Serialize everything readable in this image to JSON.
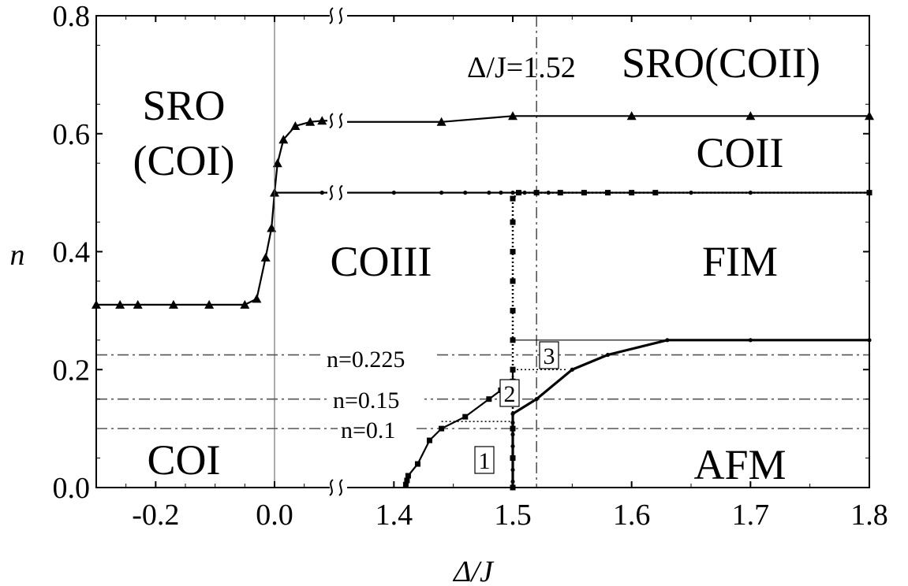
{
  "chart_data": {
    "type": "line",
    "xlabel": "Δ/J",
    "ylabel": "n",
    "ylim": [
      0,
      0.8
    ],
    "x_tick_labels": [
      "-0.2",
      "0.0",
      "1.4",
      "1.5",
      "1.6",
      "1.7",
      "1.8"
    ],
    "y_tick_labels": [
      "0.0",
      "0.2",
      "0.4",
      "0.6",
      "0.8"
    ],
    "x_axis_broken": true,
    "x_segments": [
      [
        -0.3,
        0.08
      ],
      [
        1.35,
        1.8
      ]
    ],
    "grid": false,
    "region_labels": [
      "SRO\n(COI)",
      "COI",
      "COIII",
      "COII",
      "FIM",
      "AFM"
    ],
    "top_annotation": "Δ/J=1.52 SRO(COII)",
    "vertical_reference": {
      "x": 1.52,
      "label": "Δ/J=1.52"
    },
    "horizontal_references": [
      {
        "y": 0.225,
        "label": "n=0.225"
      },
      {
        "y": 0.15,
        "label": "n=0.15"
      },
      {
        "y": 0.1,
        "label": "n=0.1"
      }
    ],
    "box_labels": [
      "1",
      "2",
      "3"
    ],
    "series": [
      {
        "marker": "triangle",
        "points": [
          [
            -0.3,
            0.31
          ],
          [
            -0.26,
            0.31
          ],
          [
            -0.23,
            0.31
          ],
          [
            -0.17,
            0.31
          ],
          [
            -0.11,
            0.31
          ],
          [
            -0.05,
            0.31
          ],
          [
            -0.03,
            0.32
          ],
          [
            -0.015,
            0.39
          ],
          [
            -0.005,
            0.44
          ],
          [
            0.0,
            0.5
          ],
          [
            0.005,
            0.55
          ],
          [
            0.015,
            0.59
          ],
          [
            0.035,
            0.613
          ],
          [
            0.06,
            0.62
          ],
          [
            0.08,
            0.622
          ],
          [
            1.44,
            0.62
          ],
          [
            1.5,
            0.63
          ],
          [
            1.6,
            0.63
          ],
          [
            1.7,
            0.63
          ],
          [
            1.8,
            0.63
          ]
        ]
      },
      {
        "marker": "dot",
        "points": [
          [
            0.0,
            0.5
          ],
          [
            0.08,
            0.5
          ],
          [
            1.35,
            0.5
          ],
          [
            1.4,
            0.5
          ],
          [
            1.44,
            0.5
          ],
          [
            1.46,
            0.5
          ],
          [
            1.48,
            0.5
          ],
          [
            1.49,
            0.5
          ],
          [
            1.5,
            0.5
          ],
          [
            1.51,
            0.5
          ],
          [
            1.53,
            0.5
          ],
          [
            1.56,
            0.5
          ],
          [
            1.6,
            0.5
          ],
          [
            1.65,
            0.5
          ],
          [
            1.7,
            0.5
          ],
          [
            1.8,
            0.5
          ]
        ]
      },
      {
        "marker": "square",
        "dash": "dotted",
        "points": [
          [
            1.5,
            0.0
          ],
          [
            1.5,
            0.05
          ],
          [
            1.5,
            0.1
          ],
          [
            1.5,
            0.15
          ],
          [
            1.5,
            0.2
          ],
          [
            1.5,
            0.25
          ],
          [
            1.5,
            0.3
          ],
          [
            1.5,
            0.35
          ],
          [
            1.5,
            0.4
          ],
          [
            1.5,
            0.45
          ],
          [
            1.5,
            0.49
          ],
          [
            1.505,
            0.5
          ],
          [
            1.52,
            0.5
          ],
          [
            1.54,
            0.5
          ],
          [
            1.56,
            0.5
          ],
          [
            1.58,
            0.5
          ],
          [
            1.6,
            0.5
          ],
          [
            1.62,
            0.5
          ],
          [
            1.8,
            0.5
          ]
        ]
      },
      {
        "marker": "square",
        "points": [
          [
            1.41,
            0.005
          ],
          [
            1.411,
            0.012
          ],
          [
            1.412,
            0.02
          ],
          [
            1.42,
            0.04
          ],
          [
            1.43,
            0.08
          ],
          [
            1.44,
            0.1
          ],
          [
            1.46,
            0.12
          ],
          [
            1.48,
            0.15
          ],
          [
            1.49,
            0.165
          ],
          [
            1.5,
            0.18
          ],
          [
            1.5,
            0.2
          ]
        ]
      },
      {
        "marker": "dot",
        "points": [
          [
            1.5,
            0.0
          ],
          [
            1.5,
            0.01
          ],
          [
            1.5,
            0.03
          ],
          [
            1.5,
            0.05
          ],
          [
            1.5,
            0.07
          ],
          [
            1.5,
            0.09
          ],
          [
            1.5,
            0.11
          ],
          [
            1.5,
            0.125
          ],
          [
            1.52,
            0.15
          ],
          [
            1.55,
            0.2
          ],
          [
            1.58,
            0.225
          ],
          [
            1.63,
            0.25
          ],
          [
            1.7,
            0.25
          ],
          [
            1.8,
            0.25
          ]
        ]
      }
    ]
  }
}
